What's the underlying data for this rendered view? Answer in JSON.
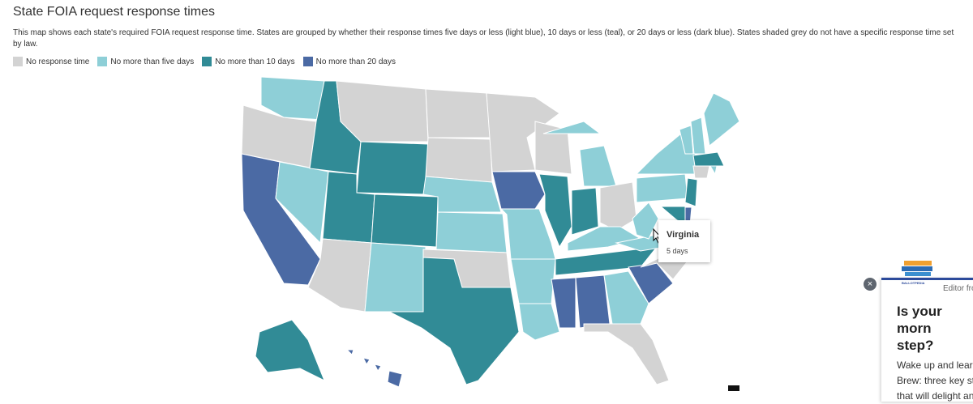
{
  "header": {
    "title": "State FOIA request response times",
    "description": "This map shows each state's required FOIA request response time. States are grouped by whether their response times five days or less (light blue), 10 days or less (teal), or 20 days or less (dark blue). States shaded grey do not have a specific response time set by law."
  },
  "legend": [
    {
      "label": "No response time",
      "color": "#d3d3d3"
    },
    {
      "label": "No more than five days",
      "color": "#8ecfd7"
    },
    {
      "label": "No more than 10 days",
      "color": "#318b96"
    },
    {
      "label": "No more than 20 days",
      "color": "#4b6aa4"
    }
  ],
  "tooltip": {
    "title": "Virginia",
    "text": "5 days"
  },
  "popup": {
    "source": "Editor fro",
    "brand": "BALLOTPEDIA",
    "headline": [
      "Is your morn",
      "step?"
    ],
    "body": [
      "Wake up and learn",
      "Brew: three key sto",
      "that will delight an"
    ]
  }
}
